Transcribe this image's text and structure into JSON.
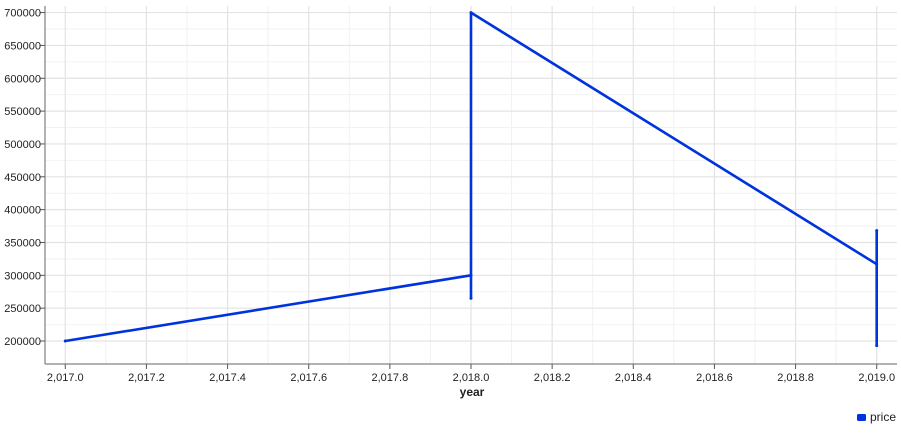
{
  "chart_data": {
    "type": "line",
    "title": "",
    "xlabel": "year",
    "ylabel": "",
    "xlim": [
      2016.95,
      2019.05
    ],
    "ylim": [
      165000,
      710000
    ],
    "x_ticks": [
      2017.0,
      2017.2,
      2017.4,
      2017.6,
      2017.8,
      2018.0,
      2018.2,
      2018.4,
      2018.6,
      2018.8,
      2019.0
    ],
    "x_tick_labels": [
      "2,017.0",
      "2,017.2",
      "2,017.4",
      "2,017.6",
      "2,017.8",
      "2,018.0",
      "2,018.2",
      "2,018.4",
      "2,018.6",
      "2,018.8",
      "2,019.0"
    ],
    "y_ticks": [
      200000,
      250000,
      300000,
      350000,
      400000,
      450000,
      500000,
      550000,
      600000,
      650000,
      700000
    ],
    "y_tick_labels": [
      "200000",
      "250000",
      "300000",
      "350000",
      "400000",
      "450000",
      "500000",
      "550000",
      "600000",
      "650000",
      "700000"
    ],
    "grid": true,
    "legend_position": "bottom-right",
    "series": [
      {
        "name": "price",
        "color": "#0033dd",
        "x": [
          2017.0,
          2018.0,
          2018.0,
          2018.0,
          2019.0,
          2019.0,
          2019.0
        ],
        "y": [
          200000,
          300000,
          265000,
          700000,
          317000,
          368000,
          193000
        ]
      }
    ]
  }
}
